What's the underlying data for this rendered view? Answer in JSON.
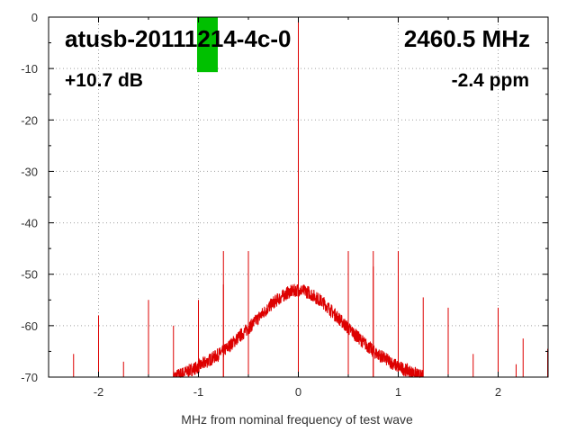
{
  "chart_data": {
    "type": "line",
    "title": "",
    "xlabel": "MHz from nominal frequency of test wave",
    "ylabel": "",
    "xlim": [
      -2.5,
      2.5
    ],
    "ylim": [
      -70,
      0
    ],
    "grid": true,
    "x_ticks": [
      -2,
      -1,
      0,
      1,
      2
    ],
    "x_tick_labels": [
      "-2",
      "-1",
      "0",
      "1",
      "2"
    ],
    "y_ticks": [
      0,
      -10,
      -20,
      -30,
      -40,
      -50,
      -60,
      -70
    ],
    "y_tick_labels": [
      "0",
      "-10",
      "-20",
      "-30",
      "-40",
      "-50",
      "-60",
      "-70"
    ],
    "annotations": {
      "device": "atusb-20111214-4c-0",
      "frequency": "2460.5 MHz",
      "level": "+10.7 dB",
      "offset": "-2.4 ppm"
    },
    "level_marker": {
      "color": "#00c000",
      "x_center": -0.91,
      "bottom_y": -10.7
    },
    "series": [
      {
        "color": "#dd0000",
        "noise_floor": {
          "x": [
            -1.25,
            -1.0,
            -0.75,
            -0.5,
            -0.25,
            -0.1,
            0.0,
            0.1,
            0.25,
            0.5,
            0.75,
            1.0,
            1.25
          ],
          "y": [
            -70,
            -68,
            -65,
            -60.5,
            -55.5,
            -53.5,
            -53.0,
            -53.5,
            -55.5,
            -60.5,
            -65,
            -68,
            -70
          ]
        },
        "spurs": [
          {
            "x": 0.0,
            "y": 0
          },
          {
            "x": 0.0,
            "y": -42
          },
          {
            "x": -2.25,
            "y": -65.5
          },
          {
            "x": -2.0,
            "y": -58
          },
          {
            "x": -1.75,
            "y": -67
          },
          {
            "x": -1.5,
            "y": -55
          },
          {
            "x": -1.25,
            "y": -60
          },
          {
            "x": -1.0,
            "y": -55
          },
          {
            "x": -1.0,
            "y": -60.5
          },
          {
            "x": -0.75,
            "y": -45.5
          },
          {
            "x": -0.75,
            "y": -52
          },
          {
            "x": -0.5,
            "y": -45.5
          },
          {
            "x": 0.5,
            "y": -45.5
          },
          {
            "x": 0.75,
            "y": -45.5
          },
          {
            "x": 0.75,
            "y": -48.5
          },
          {
            "x": 1.0,
            "y": -45.5
          },
          {
            "x": 1.0,
            "y": -55
          },
          {
            "x": 1.25,
            "y": -54.5
          },
          {
            "x": 1.5,
            "y": -56.5
          },
          {
            "x": 1.5,
            "y": -61
          },
          {
            "x": 1.75,
            "y": -65.5
          },
          {
            "x": 2.0,
            "y": -56.5
          },
          {
            "x": 2.0,
            "y": -67.5
          },
          {
            "x": 2.18,
            "y": -67.5
          },
          {
            "x": 2.25,
            "y": -62.5
          },
          {
            "x": 2.5,
            "y": -64.5
          }
        ]
      }
    ]
  }
}
